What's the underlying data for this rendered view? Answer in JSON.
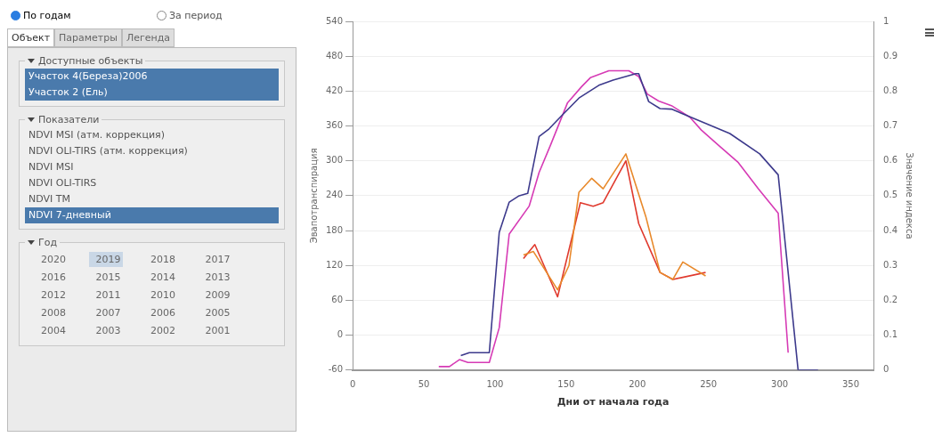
{
  "chart_data": [
    {
      "type": "other",
      "annotations": [
        "По годам",
        "За период",
        "Объект",
        "Параметры",
        "Легенда",
        "Доступные объекты",
        "Участок 4(Береза)2006",
        "Участок 2 (Ель)",
        "Показатели",
        "NDVI MSI (атм. коррекция)",
        "NDVI OLI-TIRS (атм. коррекция)",
        "NDVI MSI",
        "NDVI OLI-TIRS",
        "NDVI TM",
        "NDVI 7-дневный",
        "Год",
        "2020 2019 2018 2017",
        "2016 2015 2014 2013",
        "2012 2011 2010 2009",
        "2008 2007 2006 2005",
        "2004 2003 2002 2001"
      ]
    },
    {
      "type": "line",
      "xlabel": "Дни от начала года",
      "ylabel": "Эвапотранспирация",
      "y2label": "Значение индекса",
      "xlim": [
        0,
        366
      ],
      "xticks": [
        0,
        50,
        100,
        150,
        200,
        250,
        300,
        350
      ],
      "ylim": [
        -60,
        540
      ],
      "yticks": [
        -60,
        0,
        60,
        120,
        180,
        240,
        300,
        360,
        420,
        480,
        540
      ],
      "y2lim": [
        0,
        1
      ],
      "y2ticks": [
        0,
        0.1,
        0.2,
        0.3,
        0.4,
        0.5,
        0.6,
        0.7,
        0.8,
        0.9,
        1
      ],
      "grid": "y",
      "legend": false,
      "marker": "none",
      "series": [
        {
          "color": "#3d3a8c",
          "x": [
            76,
            82,
            96,
            103,
            110,
            117,
            123,
            131,
            138,
            147,
            159,
            173,
            183,
            199,
            201,
            208,
            216,
            224,
            265,
            286,
            299,
            313,
            327
          ],
          "values": [
            -35,
            -30,
            -30,
            177,
            229,
            240,
            244,
            342,
            355,
            378,
            408,
            430,
            439,
            450,
            450,
            402,
            390,
            389,
            347,
            312,
            276,
            -60,
            -60
          ]
        },
        {
          "color": "#d63bb5",
          "x": [
            60.5,
            68,
            75,
            81,
            96,
            103,
            110,
            124,
            131,
            139,
            151,
            161,
            167,
            180,
            194,
            201,
            207,
            215,
            224,
            237,
            245,
            257,
            271,
            285,
            299,
            306
          ],
          "values": [
            -54,
            -54,
            -42,
            -47,
            -47,
            13,
            174,
            222,
            280,
            327,
            400,
            428,
            443,
            455,
            455,
            445,
            415,
            403,
            395,
            375,
            353,
            327,
            297,
            252,
            210,
            -30
          ]
        },
        {
          "color": "#e8892b",
          "axis": "y2",
          "x": [
            120,
            127,
            144,
            152,
            159,
            168,
            176,
            192,
            206,
            216,
            225,
            232,
            248
          ],
          "values": [
            0.33,
            0.34,
            0.23,
            0.3,
            0.51,
            0.55,
            0.52,
            0.62,
            0.44,
            0.28,
            0.26,
            0.31,
            0.27
          ]
        },
        {
          "color": "#e03a2e",
          "axis": "y2",
          "x": [
            120,
            128,
            144,
            160,
            169,
            176,
            192,
            201,
            216,
            225,
            248
          ],
          "values": [
            0.32,
            0.36,
            0.21,
            0.48,
            0.47,
            0.48,
            0.6,
            0.42,
            0.28,
            0.26,
            0.28
          ]
        }
      ]
    }
  ]
}
